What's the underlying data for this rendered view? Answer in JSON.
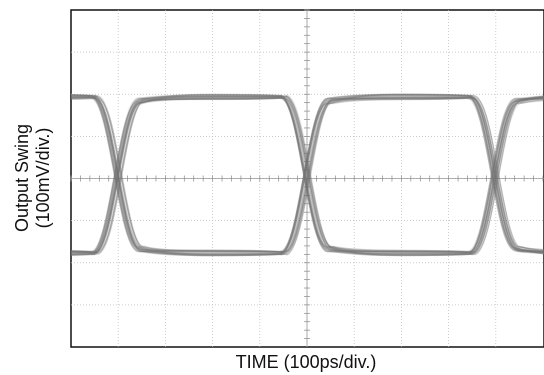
{
  "chart_data": {
    "type": "eye",
    "y_label": [
      "Output Swing",
      "(100mV/div.)"
    ],
    "x_label": "TIME (100ps/div.)"
  }
}
